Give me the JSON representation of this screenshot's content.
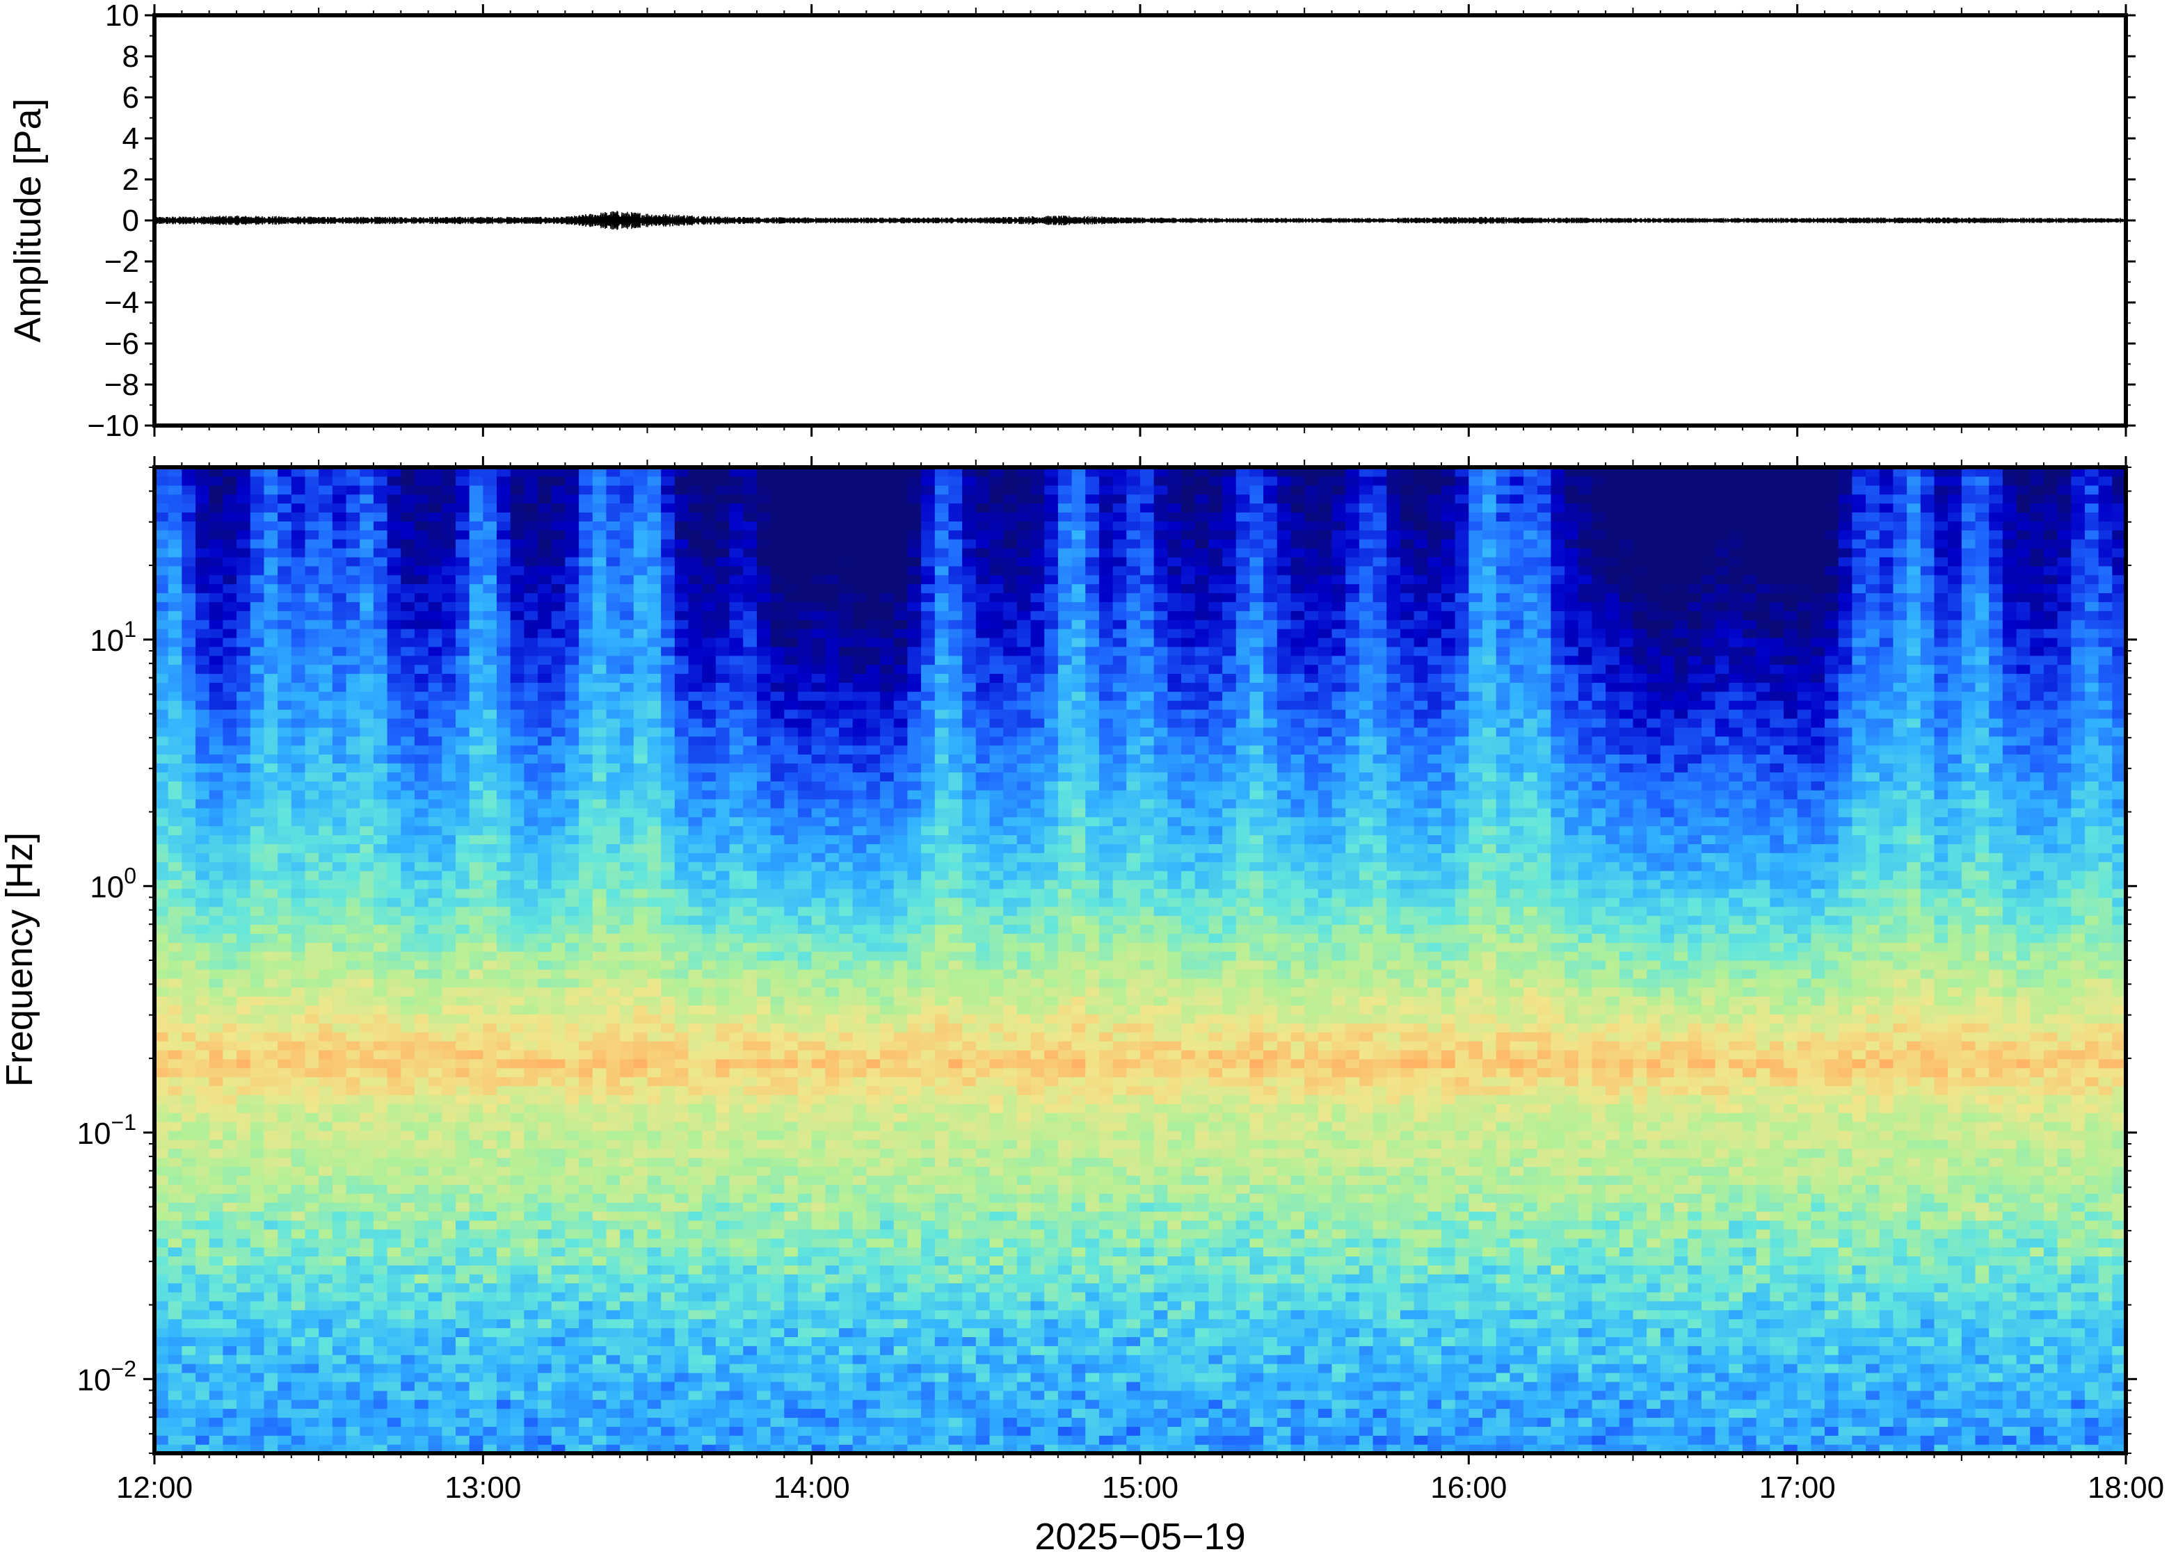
{
  "chart_data": [
    {
      "type": "line",
      "panel": "waveform",
      "ylabel": "Amplitude [Pa]",
      "ylim": [
        -10,
        10
      ],
      "yticks": [
        10,
        8,
        6,
        4,
        2,
        0,
        -2,
        -4,
        -6,
        -8,
        -10
      ],
      "ytick_labels": [
        "10",
        "8",
        "6",
        "4",
        "2",
        "0",
        "−2",
        "−4",
        "−6",
        "−8",
        "−10"
      ],
      "xlim": [
        "12:00",
        "18:00"
      ],
      "series": [
        {
          "color": "#000000",
          "x_hours": [
            12.0,
            12.25,
            12.5,
            12.75,
            13.0,
            13.25,
            13.4,
            13.5,
            13.75,
            14.0,
            14.25,
            14.5,
            14.75,
            15.0,
            15.25,
            15.5,
            15.75,
            16.0,
            16.25,
            16.5,
            16.75,
            17.0,
            17.25,
            17.5,
            17.75,
            18.0
          ],
          "envelope_pa": [
            0.15,
            0.2,
            0.15,
            0.15,
            0.15,
            0.15,
            0.4,
            0.3,
            0.15,
            0.12,
            0.12,
            0.12,
            0.2,
            0.12,
            0.1,
            0.1,
            0.1,
            0.15,
            0.12,
            0.1,
            0.1,
            0.1,
            0.12,
            0.12,
            0.1,
            0.1
          ]
        }
      ]
    },
    {
      "type": "heatmap",
      "panel": "spectrogram",
      "ylabel": "Frequency [Hz]",
      "xlabel": "2025−05−19",
      "yscale": "log",
      "ylim_hz": [
        0.005,
        50
      ],
      "ytick_values": [
        0.01,
        0.1,
        1,
        10
      ],
      "ytick_base": "10",
      "ytick_exponents": [
        "−2",
        "−1",
        "0",
        "1"
      ],
      "xtick_labels": [
        "12:00",
        "13:00",
        "14:00",
        "15:00",
        "16:00",
        "17:00",
        "18:00"
      ],
      "xlim_hours": [
        12,
        18
      ],
      "colormap": [
        "#0a0a78",
        "#0000c8",
        "#1e64ff",
        "#32b4ff",
        "#64e6dc",
        "#b4f096",
        "#f0e68c",
        "#ffb464",
        "#ff7846"
      ],
      "rows_description_hz_bands": [
        0.006,
        0.015,
        0.035,
        0.07,
        0.12,
        0.19,
        0.3,
        0.6,
        1.2,
        3,
        8,
        20,
        45
      ],
      "band_intensity": [
        0.35,
        0.42,
        0.55,
        0.64,
        0.68,
        0.82,
        0.7,
        0.55,
        0.42,
        0.3,
        0.18,
        0.08,
        0.02
      ],
      "activity_hours": [
        12.05,
        12.35,
        12.5,
        12.65,
        13.0,
        13.35,
        13.5,
        13.8,
        14.4,
        14.8,
        15.0,
        15.35,
        15.7,
        16.05,
        16.2,
        17.2,
        17.35,
        17.55,
        17.9
      ],
      "activity_strength": [
        0.9,
        0.8,
        0.7,
        0.8,
        0.9,
        0.95,
        1.0,
        0.6,
        0.9,
        0.95,
        0.6,
        0.7,
        0.6,
        1.0,
        0.8,
        0.7,
        0.9,
        0.8,
        0.6
      ],
      "quiet_hours": [
        13.85,
        14.2,
        16.6,
        17.0
      ],
      "grid": false
    }
  ]
}
